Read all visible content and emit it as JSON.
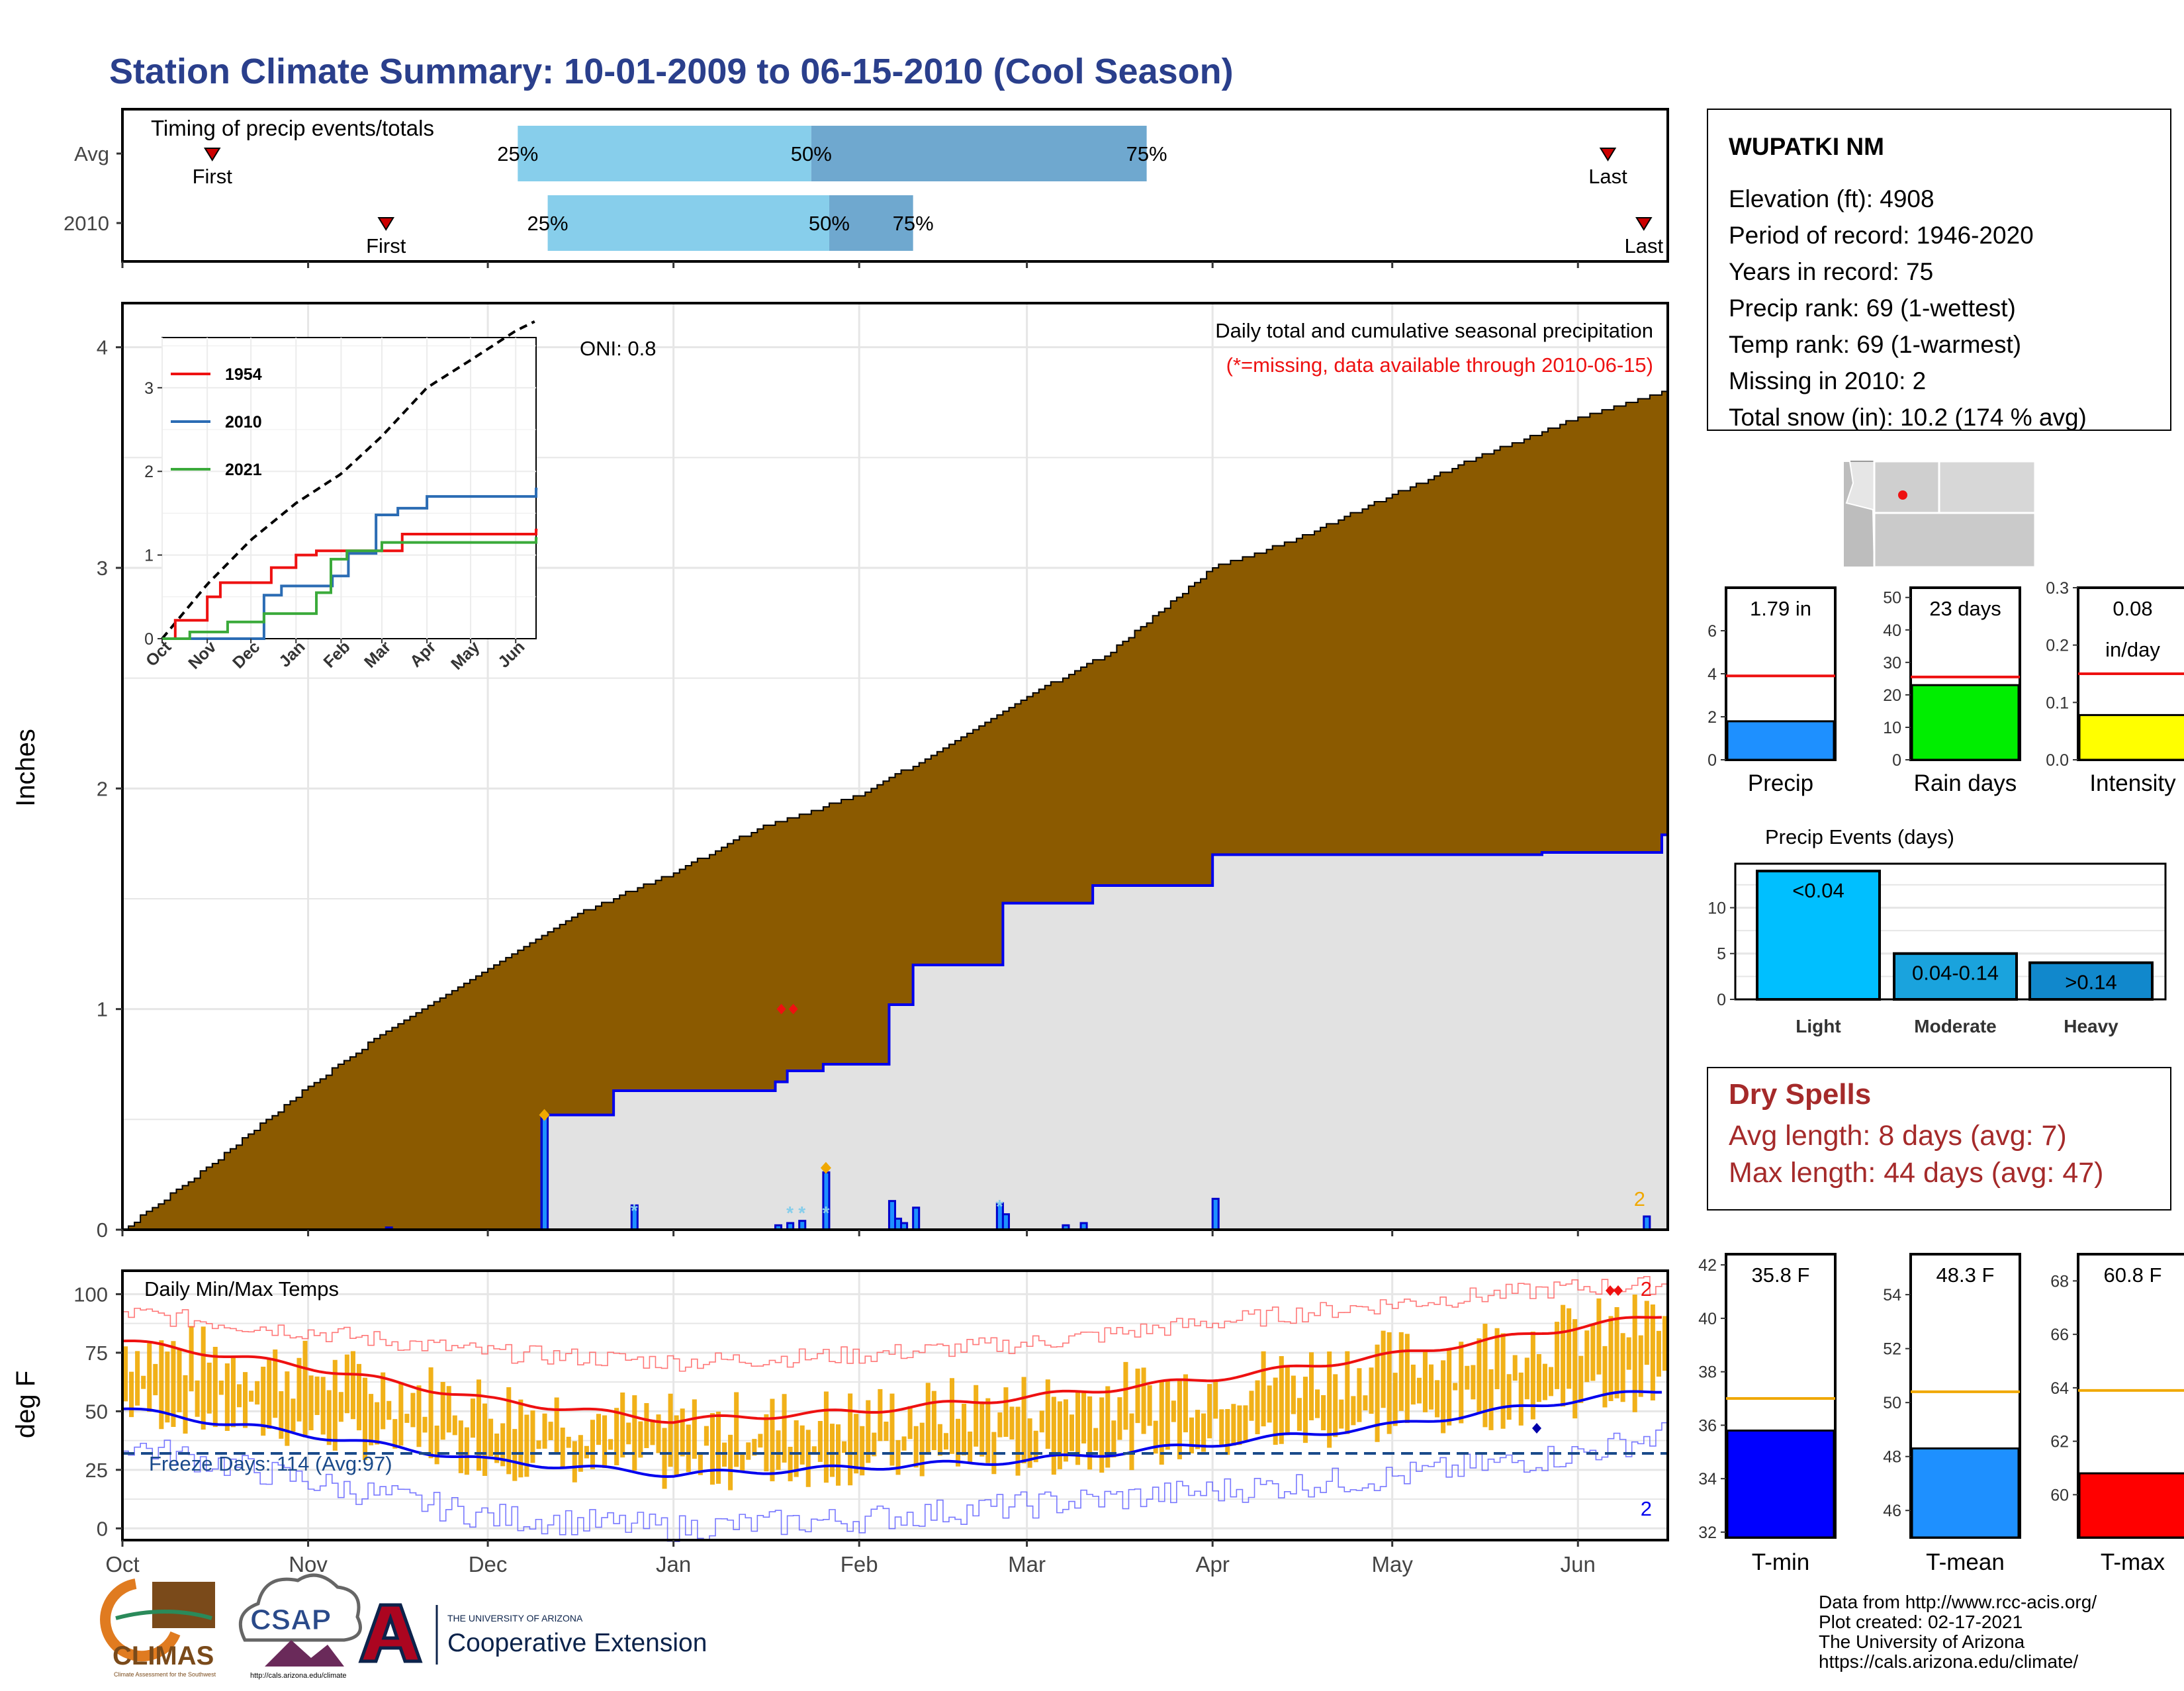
{
  "title": "Station Climate Summary: 10-01-2009 to 06-15-2010 (Cool Season)",
  "colors": {
    "title": "#2a3f8c",
    "brown": "#8b5a00",
    "gray_fill": "#e2e2e2",
    "blue": "#0000ee",
    "light_blue": "#87ceeb",
    "mid_blue": "#6fa8cf",
    "red": "#ee1111",
    "orange": "#f0a800",
    "dry_red": "#a52a2a",
    "freeze": "#1a4a8a"
  },
  "timing": {
    "label": "Timing of precip events/totals",
    "rows": [
      {
        "name": "Avg",
        "first_label": "First",
        "first": "2009-10-16",
        "last_label": "Last",
        "last": "2010-06-06",
        "p25": "2009-12-06",
        "p50": "2010-01-24",
        "p75": "2010-03-21",
        "p25_label": "25%",
        "p50_label": "50%",
        "p75_label": "75%"
      },
      {
        "name": "2010",
        "first_label": "First",
        "first": "2009-11-14",
        "last_label": "Last",
        "last": "2010-06-12",
        "p25": "2009-12-11",
        "p50": "2010-01-27",
        "p75": "2010-02-10",
        "p25_label": "25%",
        "p50_label": "50%",
        "p75_label": "75%"
      }
    ]
  },
  "main_chart": {
    "ylabel": "Inches",
    "oni": "ONI: 0.8",
    "note1": "Daily total and cumulative seasonal precipitation",
    "note2": "(*=missing, data available through 2010-06-15)",
    "missing_count": "2",
    "y_ticks": [
      "0",
      "1",
      "2",
      "3",
      "4"
    ],
    "x_ticks": [
      "Oct",
      "Nov",
      "Dec",
      "Jan",
      "Feb",
      "Mar",
      "Apr",
      "May",
      "Jun"
    ]
  },
  "inset": {
    "legend": [
      {
        "name": "1954",
        "color": "#ee1111"
      },
      {
        "name": "2010",
        "color": "#2b6cb4"
      },
      {
        "name": "2021",
        "color": "#3aaa3a"
      }
    ],
    "y_ticks": [
      "0",
      "1",
      "2",
      "3"
    ],
    "x_ticks": [
      "Oct",
      "Nov",
      "Dec",
      "Jan",
      "Feb",
      "Mar",
      "Apr",
      "May",
      "Jun"
    ]
  },
  "station": {
    "name": "WUPATKI NM",
    "lines": [
      "Elevation (ft): 4908",
      "Period of record: 1946-2020",
      "Years in record: 75",
      "Precip rank: 69 (1-wettest)",
      "Temp rank: 69 (1-warmest)",
      "Missing in 2010: 2",
      "Total snow (in): 10.2 (174 % avg)"
    ]
  },
  "mini_precip": [
    {
      "label": "Precip",
      "value_label": "1.79 in",
      "value": 1.79,
      "avg": 3.9,
      "ymax": 8,
      "ticks": [
        "0",
        "2",
        "4",
        "6"
      ],
      "tick_vals": [
        0,
        2,
        4,
        6
      ],
      "color": "#1e90ff"
    },
    {
      "label": "Rain days",
      "value_label": "23 days",
      "value": 23,
      "avg": 25.5,
      "ymax": 53,
      "ticks": [
        "0",
        "10",
        "20",
        "30",
        "40",
        "50"
      ],
      "tick_vals": [
        0,
        10,
        20,
        30,
        40,
        50
      ],
      "color": "#00ee00"
    },
    {
      "label": "Intensity",
      "value_label": "0.08",
      "value_label2": "in/day",
      "value": 0.078,
      "avg": 0.15,
      "ymax": 0.3,
      "ticks": [
        "0.0",
        "0.1",
        "0.2",
        "0.3"
      ],
      "tick_vals": [
        0,
        0.1,
        0.2,
        0.3
      ],
      "color": "#ffff00"
    }
  ],
  "events": {
    "title": "Precip Events (days)",
    "categories": [
      "Light",
      "Moderate",
      "Heavy"
    ],
    "bar_labels": [
      "<0.04",
      "0.04-0.14",
      ">0.14"
    ],
    "values": [
      14,
      5,
      4
    ],
    "colors": [
      "#00bfff",
      "#1aa3dd",
      "#1188cc"
    ],
    "y_ticks": [
      "0",
      "5",
      "10"
    ],
    "tick_vals": [
      0,
      5,
      10
    ]
  },
  "dry_spells": {
    "title": "Dry Spells",
    "line1": "Avg length: 8 days (avg: 7)",
    "line2": "Max length: 44 days (avg: 47)"
  },
  "temp_chart": {
    "ylabel": "deg F",
    "label": "Daily Min/Max Temps",
    "freeze": "Freeze Days: 114 (Avg:97)",
    "missing_top": "2",
    "missing_bottom": "2",
    "y_ticks": [
      "0",
      "25",
      "50",
      "75",
      "100"
    ],
    "tick_vals": [
      0,
      25,
      50,
      75,
      100
    ],
    "x_ticks": [
      "Oct",
      "Nov",
      "Dec",
      "Jan",
      "Feb",
      "Mar",
      "Apr",
      "May",
      "Jun"
    ]
  },
  "mini_temp": [
    {
      "label": "T-min",
      "value_label": "35.8 F",
      "value": 35.8,
      "avg": 37.0,
      "ymin": 31.8,
      "ymax": 42.4,
      "ticks": [
        "32",
        "34",
        "36",
        "38",
        "40",
        "42"
      ],
      "tick_vals": [
        32,
        34,
        36,
        38,
        40,
        42
      ],
      "color": "#0000ff"
    },
    {
      "label": "T-mean",
      "value_label": "48.3 F",
      "value": 48.3,
      "avg": 50.4,
      "ymin": 45.0,
      "ymax": 55.5,
      "ticks": [
        "46",
        "48",
        "50",
        "52",
        "54"
      ],
      "tick_vals": [
        46,
        48,
        50,
        52,
        54
      ],
      "color": "#1e90ff"
    },
    {
      "label": "T-max",
      "value_label": "60.8 F",
      "value": 60.8,
      "avg": 63.9,
      "ymin": 58.4,
      "ymax": 69.0,
      "ticks": [
        "60",
        "62",
        "64",
        "66",
        "68"
      ],
      "tick_vals": [
        60,
        62,
        64,
        66,
        68
      ],
      "color": "#ff0000"
    }
  ],
  "footer": {
    "lines": [
      "Data from http://www.rcc-acis.org/",
      "Plot created: 02-17-2021",
      "The University of Arizona",
      "https://cals.arizona.edu/climate/"
    ],
    "logos": {
      "climas": "CLIMAS",
      "climas_sub": "Climate Assessment for the Southwest",
      "csap": "CSAP",
      "csap_url": "http://cals.arizona.edu/climate",
      "ua_small": "THE UNIVERSITY OF ARIZONA",
      "ua_big": "Cooperative Extension"
    }
  },
  "chart_data": [
    {
      "type": "area",
      "name_note": "Daily total and cumulative seasonal precipitation",
      "ylabel": "Inches",
      "ylim": [
        0,
        4.2
      ],
      "x_range": [
        "2009-10-01",
        "2010-06-15"
      ],
      "series": [
        {
          "name": "",
          "kind": "average cumulative (brown area top)",
          "x": [
            "2009-10-01",
            "2009-10-15",
            "2009-11-01",
            "2009-11-15",
            "2009-12-01",
            "2009-12-15",
            "2010-01-01",
            "2010-01-15",
            "2010-02-01",
            "2010-02-15",
            "2010-03-01",
            "2010-03-15",
            "2010-04-01",
            "2010-04-15",
            "2010-05-01",
            "2010-05-15",
            "2010-06-01",
            "2010-06-15"
          ],
          "values": [
            0.0,
            0.28,
            0.65,
            0.92,
            1.18,
            1.42,
            1.62,
            1.82,
            1.97,
            2.18,
            2.42,
            2.62,
            3.0,
            3.13,
            3.33,
            3.5,
            3.68,
            3.8
          ]
        },
        {
          "name": "",
          "kind": "2010 cumulative (blue line)",
          "x": [
            "2009-10-01",
            "2009-12-10",
            "2009-12-22",
            "2010-01-18",
            "2010-01-20",
            "2010-01-26",
            "2010-02-06",
            "2010-02-10",
            "2010-02-25",
            "2010-03-12",
            "2010-04-01",
            "2010-05-26",
            "2010-06-15"
          ],
          "values": [
            0.0,
            0.52,
            0.63,
            0.67,
            0.72,
            0.75,
            1.02,
            1.2,
            1.48,
            1.56,
            1.7,
            1.71,
            1.79
          ]
        },
        {
          "name": "",
          "kind": "daily precipitation (blue bars)",
          "x": [
            "2009-11-14",
            "2009-12-10",
            "2009-12-25",
            "2010-01-18",
            "2010-01-20",
            "2010-01-22",
            "2010-01-26",
            "2010-02-06",
            "2010-02-07",
            "2010-02-08",
            "2010-02-10",
            "2010-02-24",
            "2010-02-25",
            "2010-03-07",
            "2010-03-10",
            "2010-04-01",
            "2010-06-12"
          ],
          "values": [
            0.01,
            0.52,
            0.11,
            0.02,
            0.03,
            0.04,
            0.26,
            0.13,
            0.05,
            0.03,
            0.1,
            0.12,
            0.07,
            0.02,
            0.03,
            0.14,
            0.06
          ]
        }
      ]
    },
    {
      "type": "line",
      "name_note": "inset cumulative precipitation",
      "ylim": [
        0,
        4.2
      ],
      "x_range": [
        "2009-10-01",
        "2010-06-15"
      ],
      "series": [
        {
          "name": "",
          "kind": "average (dashed black)",
          "x": [
            "2009-10-01",
            "2009-11-01",
            "2009-12-01",
            "2010-01-01",
            "2010-02-01",
            "2010-03-01",
            "2010-04-01",
            "2010-05-01",
            "2010-06-01",
            "2010-06-15"
          ],
          "values": [
            0.0,
            0.65,
            1.18,
            1.62,
            1.97,
            2.42,
            3.0,
            3.33,
            3.68,
            3.8
          ]
        },
        {
          "name": "1954",
          "x": [
            "2009-10-01",
            "2009-10-10",
            "2009-11-01",
            "2009-11-10",
            "2009-12-01",
            "2009-12-15",
            "2010-01-01",
            "2010-01-15",
            "2010-02-01",
            "2010-03-01",
            "2010-03-15",
            "2010-04-01",
            "2010-05-01",
            "2010-06-15"
          ],
          "values": [
            0.0,
            0.22,
            0.5,
            0.67,
            0.67,
            0.85,
            1.0,
            1.05,
            1.05,
            1.05,
            1.25,
            1.25,
            1.25,
            1.3
          ]
        },
        {
          "name": "2010",
          "x": [
            "2009-10-01",
            "2009-12-10",
            "2009-12-22",
            "2010-01-26",
            "2010-02-06",
            "2010-02-25",
            "2010-03-12",
            "2010-04-01",
            "2010-06-15"
          ],
          "values": [
            0.0,
            0.52,
            0.63,
            0.75,
            1.02,
            1.48,
            1.56,
            1.7,
            1.79
          ]
        },
        {
          "name": "2021",
          "x": [
            "2009-10-01",
            "2009-10-20",
            "2009-11-15",
            "2009-12-10",
            "2010-01-15",
            "2010-01-25",
            "2010-02-05",
            "2010-03-01",
            "2010-04-01",
            "2010-06-15"
          ],
          "values": [
            0.0,
            0.08,
            0.2,
            0.3,
            0.55,
            0.95,
            1.05,
            1.15,
            1.15,
            1.2
          ]
        }
      ]
    },
    {
      "type": "bar",
      "name_note": "Precip Events (days)",
      "categories": [
        "Light",
        "Moderate",
        "Heavy"
      ],
      "values": [
        14,
        5,
        4
      ]
    },
    {
      "type": "line",
      "name_note": "Daily Min/Max Temps",
      "ylabel": "deg F",
      "ylim": [
        -5,
        110
      ],
      "x_range": [
        "2009-10-01",
        "2010-06-15"
      ],
      "series": [
        {
          "name": "",
          "kind": "average max (red line)",
          "x": [
            "2009-10-01",
            "2009-11-01",
            "2009-12-01",
            "2010-01-01",
            "2010-02-01",
            "2010-03-01",
            "2010-04-01",
            "2010-05-01",
            "2010-06-01",
            "2010-06-15"
          ],
          "values": [
            80,
            69,
            55,
            46,
            50,
            56,
            64,
            74,
            86,
            91
          ]
        },
        {
          "name": "",
          "kind": "average min (blue line)",
          "x": [
            "2009-10-01",
            "2009-11-01",
            "2009-12-01",
            "2010-01-01",
            "2010-02-01",
            "2010-03-01",
            "2010-04-01",
            "2010-05-01",
            "2010-06-01",
            "2010-06-15"
          ],
          "values": [
            51,
            40,
            29,
            23,
            26,
            29,
            36,
            44,
            55,
            59
          ]
        },
        {
          "name": "",
          "kind": "record high (thin red)",
          "x": [
            "2009-10-01",
            "2009-11-01",
            "2009-12-01",
            "2010-01-01",
            "2010-02-01",
            "2010-03-01",
            "2010-04-01",
            "2010-05-01",
            "2010-06-01",
            "2010-06-15"
          ],
          "values": [
            92,
            84,
            75,
            71,
            74,
            79,
            88,
            96,
            103,
            104
          ]
        },
        {
          "name": "",
          "kind": "record low (thin blue)",
          "x": [
            "2009-10-01",
            "2009-11-01",
            "2009-12-01",
            "2010-01-01",
            "2010-02-01",
            "2010-03-01",
            "2010-04-01",
            "2010-05-01",
            "2010-06-01",
            "2010-06-15"
          ],
          "values": [
            36,
            20,
            5,
            0,
            4,
            10,
            16,
            22,
            32,
            40
          ]
        },
        {
          "name": "",
          "kind": "freeze line",
          "values": [
            32
          ]
        }
      ]
    }
  ]
}
